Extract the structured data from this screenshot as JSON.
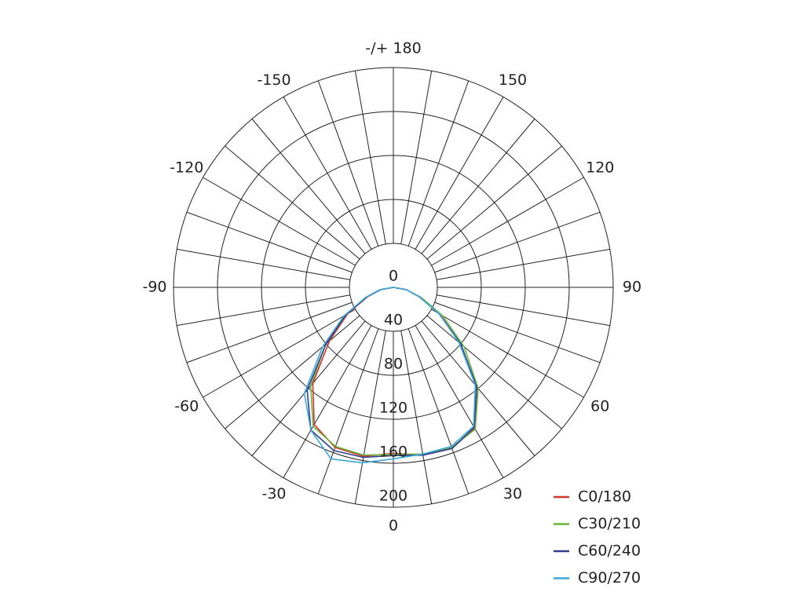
{
  "chart_data": {
    "type": "polar",
    "theta": [
      -90,
      -80,
      -70,
      -60,
      -50,
      -40,
      -30,
      -20,
      -10,
      0,
      10,
      20,
      30,
      40,
      50,
      60,
      70,
      80,
      90
    ],
    "thetaticks": [
      {
        "value": 180,
        "label": "-/+ 180"
      },
      150,
      120,
      90,
      60,
      30,
      0,
      -30,
      -60,
      -90,
      -120,
      -150
    ],
    "theta_minor_ticks": [
      10,
      20,
      40,
      50,
      70,
      80,
      100,
      110,
      130,
      140,
      160,
      170,
      -10,
      -20,
      -40,
      -50,
      -70,
      -80,
      -100,
      -110,
      -130,
      -140,
      -160,
      -170
    ],
    "rlim": [
      0,
      200
    ],
    "rticks": [
      0,
      40,
      80,
      120,
      160,
      200
    ],
    "series": [
      {
        "name": "C0/180",
        "color": "#d0352b",
        "values": [
          0,
          12,
          25,
          48,
          76,
          114,
          144,
          155,
          156,
          151,
          155,
          156,
          148,
          118,
          80,
          49,
          26,
          12,
          0
        ]
      },
      {
        "name": "C30/210",
        "color": "#6cb33e",
        "values": [
          0,
          12,
          26,
          50,
          80,
          117,
          146,
          154,
          155,
          152,
          154,
          155,
          149,
          120,
          84,
          52,
          27,
          12,
          0
        ]
      },
      {
        "name": "C60/240",
        "color": "#2f3d8c",
        "values": [
          0,
          12,
          26,
          50,
          80,
          122,
          150,
          158,
          157,
          153,
          155,
          156,
          147,
          118,
          80,
          48,
          25,
          12,
          0
        ]
      },
      {
        "name": "C90/270",
        "color": "#3aa7d8",
        "values": [
          0,
          13,
          27,
          52,
          84,
          126,
          150,
          166,
          162,
          156,
          154,
          154,
          146,
          116,
          78,
          48,
          25,
          12,
          0
        ]
      }
    ],
    "legend": "lower right"
  }
}
